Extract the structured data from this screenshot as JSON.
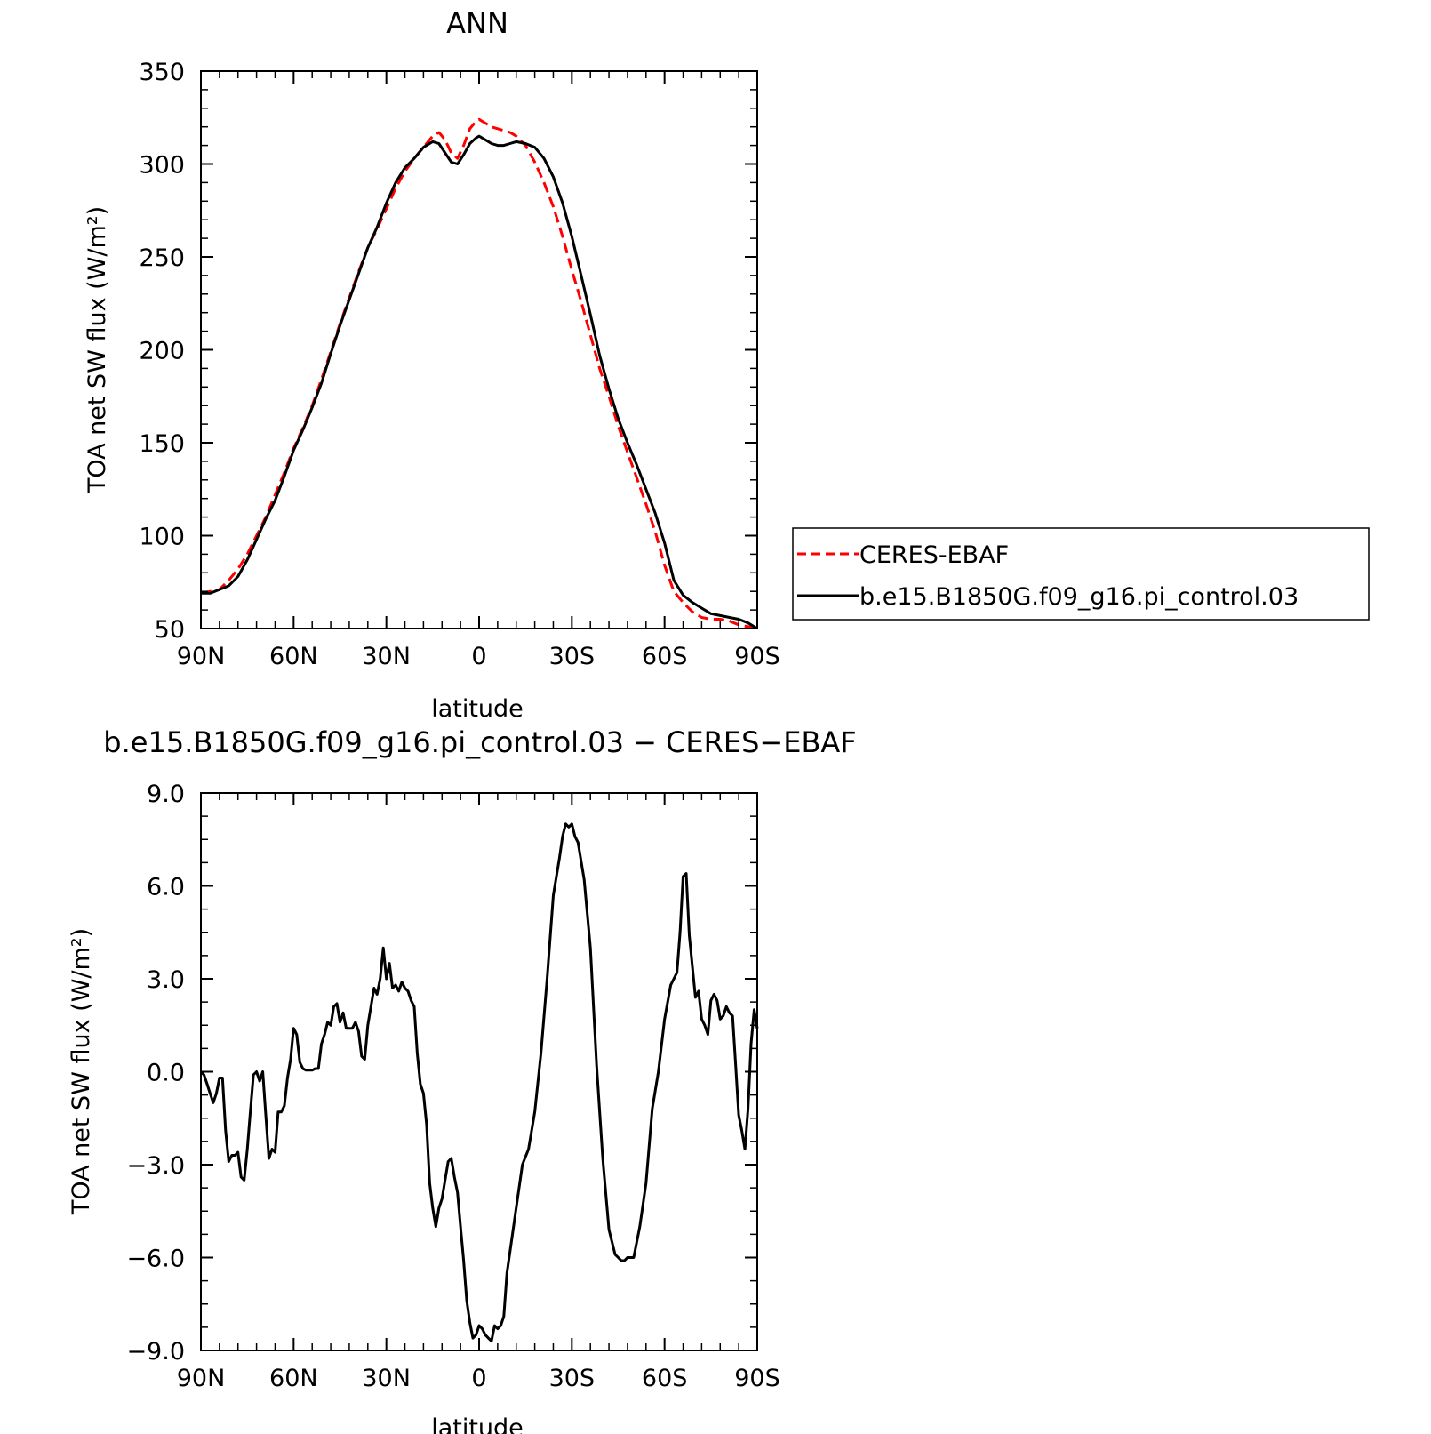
{
  "chart_data": [
    {
      "type": "line",
      "title": "ANN",
      "xlabel": "latitude",
      "ylabel": "TOA net SW flux (W/m²)",
      "xlim": [
        90,
        -90
      ],
      "ylim": [
        50,
        350
      ],
      "xticks": [
        90,
        60,
        30,
        0,
        -30,
        -60,
        -90
      ],
      "xtick_labels": [
        "90N",
        "60N",
        "30N",
        "0",
        "30S",
        "60S",
        "90S"
      ],
      "yticks": [
        50,
        100,
        150,
        200,
        250,
        300,
        350
      ],
      "ytick_labels": [
        "50",
        "100",
        "150",
        "200",
        "250",
        "300",
        "350"
      ],
      "legend": "right",
      "series": [
        {
          "name": "CERES-EBAF",
          "color": "#ff0000",
          "dash": "dashed",
          "x": [
            90,
            87,
            84,
            81,
            78,
            75,
            72,
            69,
            66,
            63,
            60,
            57,
            54,
            51,
            48,
            45,
            42,
            39,
            36,
            33,
            30,
            27,
            24,
            21,
            18,
            15,
            13,
            11,
            9,
            7,
            5,
            3,
            1,
            0,
            -2,
            -4,
            -6,
            -8,
            -10,
            -12,
            -15,
            -18,
            -21,
            -24,
            -27,
            -30,
            -33,
            -36,
            -39,
            -42,
            -45,
            -48,
            -51,
            -54,
            -57,
            -60,
            -63,
            -66,
            -69,
            -72,
            -75,
            -78,
            -81,
            -84,
            -87,
            -90
          ],
          "y": [
            69,
            70,
            71,
            76,
            82,
            90,
            100,
            110,
            122,
            134,
            147,
            158,
            170,
            184,
            199,
            214,
            228,
            242,
            255,
            265,
            276,
            287,
            296,
            303,
            309,
            315,
            317,
            313,
            306,
            303,
            310,
            319,
            323,
            324,
            322,
            320,
            319,
            318,
            317,
            315,
            310,
            301,
            290,
            277,
            261,
            243,
            226,
            208,
            190,
            175,
            159,
            145,
            131,
            117,
            102,
            84,
            70,
            64,
            59,
            56,
            55,
            55,
            54,
            52,
            51,
            50
          ]
        },
        {
          "name": "b.e15.B1850G.f09_g16.pi_control.03",
          "color": "#000000",
          "dash": "solid",
          "x": [
            90,
            87,
            84,
            81,
            78,
            75,
            72,
            69,
            66,
            63,
            60,
            57,
            54,
            51,
            48,
            45,
            42,
            39,
            36,
            33,
            30,
            27,
            24,
            21,
            18,
            15,
            13,
            11,
            9,
            7,
            5,
            3,
            1,
            0,
            -2,
            -4,
            -6,
            -8,
            -10,
            -12,
            -15,
            -18,
            -21,
            -24,
            -27,
            -30,
            -33,
            -36,
            -39,
            -42,
            -45,
            -48,
            -51,
            -54,
            -57,
            -60,
            -63,
            -66,
            -69,
            -72,
            -75,
            -78,
            -81,
            -84,
            -87,
            -90
          ],
          "y": [
            69,
            69,
            71,
            73,
            78,
            87,
            98,
            109,
            119,
            132,
            146,
            157,
            169,
            182,
            198,
            213,
            227,
            241,
            255,
            266,
            279,
            290,
            298,
            303,
            309,
            312,
            311,
            306,
            301,
            300,
            305,
            311,
            314,
            315,
            313,
            311,
            310,
            310,
            311,
            312,
            311,
            309,
            303,
            293,
            279,
            261,
            240,
            219,
            197,
            179,
            163,
            150,
            138,
            125,
            112,
            96,
            76,
            68,
            64,
            61,
            58,
            57,
            56,
            55,
            53,
            50
          ]
        }
      ]
    },
    {
      "type": "line",
      "title": "b.e15.B1850G.f09_g16.pi_control.03 − CERES−EBAF",
      "xlabel": "latitude",
      "ylabel": "TOA net SW flux (W/m²)",
      "xlim": [
        90,
        -90
      ],
      "ylim": [
        -9.0,
        9.0
      ],
      "xticks": [
        90,
        60,
        30,
        0,
        -30,
        -60,
        -90
      ],
      "xtick_labels": [
        "90N",
        "60N",
        "30N",
        "0",
        "30S",
        "60S",
        "90S"
      ],
      "yticks": [
        -9,
        -6,
        -3,
        0,
        3,
        6,
        9
      ],
      "ytick_labels": [
        "−9.0",
        "−6.0",
        "−3.0",
        "0.0",
        "3.0",
        "6.0",
        "9.0"
      ],
      "series": [
        {
          "color": "#000000",
          "dash": "solid",
          "x": [
            90,
            89,
            88,
            87,
            86,
            85,
            84,
            83,
            82,
            81,
            80,
            79,
            78,
            77,
            76,
            75,
            74,
            73,
            72,
            71,
            70,
            69,
            68,
            67,
            66,
            65,
            64,
            63,
            62,
            61,
            60,
            59,
            58,
            57,
            56,
            55,
            54,
            53,
            52,
            51,
            50,
            49,
            48,
            47,
            46,
            45,
            44,
            43,
            42,
            41,
            40,
            39,
            38,
            37,
            36,
            35,
            34,
            33,
            32,
            31,
            30,
            29,
            28,
            27,
            26,
            25,
            24,
            23,
            22,
            21,
            20,
            19,
            18,
            17,
            16,
            15,
            14,
            13,
            12,
            11,
            10,
            9,
            8,
            7,
            6,
            5,
            4,
            3,
            2,
            1,
            0,
            -1,
            -2,
            -3,
            -4,
            -5,
            -6,
            -7,
            -8,
            -9,
            -10,
            -12,
            -14,
            -16,
            -18,
            -20,
            -22,
            -24,
            -26,
            -27,
            -28,
            -29,
            -30,
            -31,
            -32,
            -34,
            -36,
            -38,
            -40,
            -42,
            -44,
            -46,
            -47,
            -48,
            -50,
            -52,
            -54,
            -56,
            -58,
            -60,
            -62,
            -64,
            -65,
            -66,
            -67,
            -68,
            -70,
            -71,
            -72,
            -73,
            -74,
            -75,
            -76,
            -77,
            -78,
            -79,
            -80,
            -81,
            -82,
            -83,
            -84,
            -85,
            -86,
            -87,
            -88,
            -89,
            -90
          ],
          "y": [
            0.0,
            -0.1,
            -0.4,
            -0.7,
            -1.0,
            -0.7,
            -0.2,
            -0.2,
            -1.9,
            -2.9,
            -2.7,
            -2.7,
            -2.6,
            -3.4,
            -3.5,
            -2.5,
            -1.3,
            -0.1,
            0.0,
            -0.3,
            0.0,
            -1.4,
            -2.8,
            -2.5,
            -2.6,
            -1.3,
            -1.3,
            -1.1,
            -0.2,
            0.4,
            1.4,
            1.2,
            0.3,
            0.1,
            0.05,
            0.05,
            0.05,
            0.1,
            0.1,
            0.9,
            1.2,
            1.6,
            1.5,
            2.1,
            2.2,
            1.6,
            1.9,
            1.4,
            1.4,
            1.4,
            1.6,
            1.3,
            0.5,
            0.4,
            1.5,
            2.1,
            2.7,
            2.5,
            3.0,
            4.0,
            3.0,
            3.5,
            2.7,
            2.8,
            2.6,
            2.9,
            2.7,
            2.6,
            2.3,
            2.1,
            0.6,
            -0.4,
            -0.7,
            -1.7,
            -3.6,
            -4.4,
            -5.0,
            -4.4,
            -4.1,
            -3.5,
            -2.9,
            -2.8,
            -3.4,
            -3.9,
            -5.0,
            -6.1,
            -7.4,
            -8.1,
            -8.6,
            -8.5,
            -8.2,
            -8.3,
            -8.5,
            -8.6,
            -8.7,
            -8.2,
            -8.3,
            -8.2,
            -7.9,
            -6.5,
            -5.8,
            -4.4,
            -3.0,
            -2.5,
            -1.3,
            0.6,
            3.0,
            5.7,
            6.9,
            7.6,
            8.0,
            7.9,
            8.0,
            7.6,
            7.4,
            6.2,
            4.0,
            0.2,
            -2.8,
            -5.1,
            -5.9,
            -6.1,
            -6.1,
            -6.0,
            -6.0,
            -5.0,
            -3.6,
            -1.2,
            0.0,
            1.7,
            2.8,
            3.2,
            4.5,
            6.3,
            6.4,
            4.4,
            2.4,
            2.6,
            1.7,
            1.5,
            1.2,
            2.3,
            2.5,
            2.3,
            1.7,
            1.8,
            2.1,
            1.9,
            1.8,
            0.2,
            -1.4,
            -1.9,
            -2.5,
            -1.2,
            0.9,
            2.0,
            1.4
          ]
        }
      ]
    }
  ]
}
